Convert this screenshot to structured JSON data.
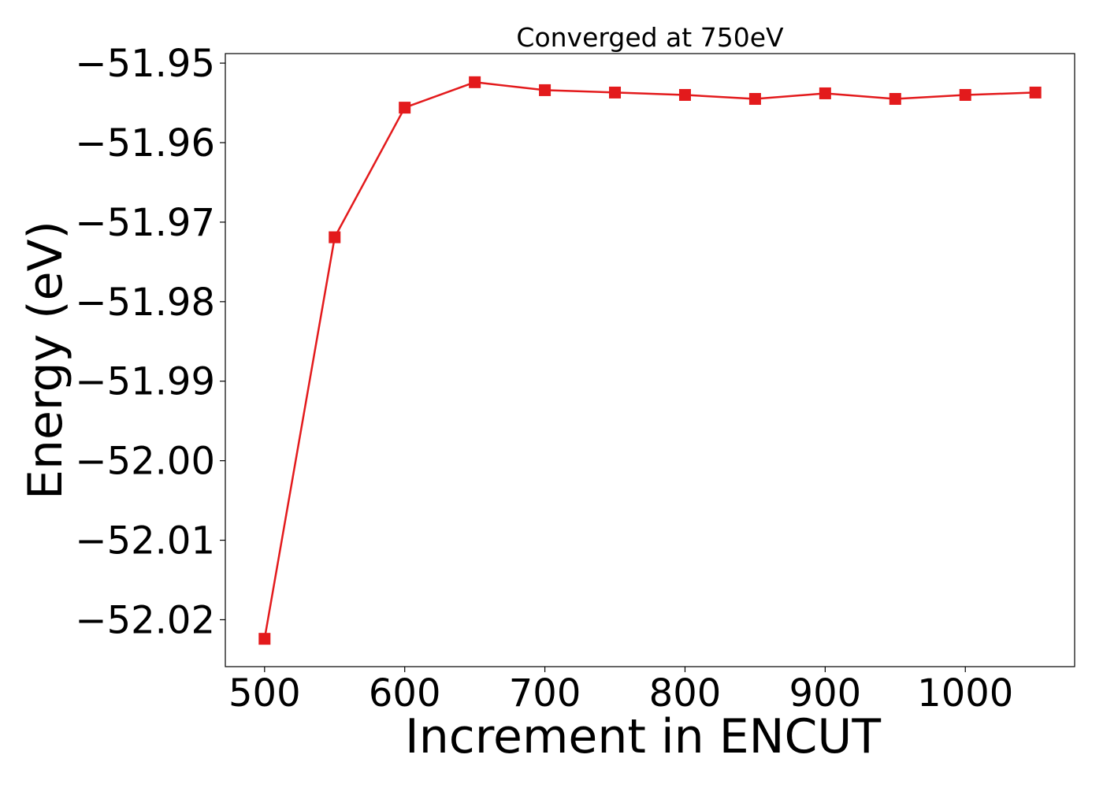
{
  "chart_data": {
    "type": "line",
    "title": "Converged at 750eV",
    "xlabel": "Increment in ENCUT",
    "ylabel": "Energy (eV)",
    "xlim": [
      472,
      1078
    ],
    "ylim": [
      -52.0259,
      -51.9488
    ],
    "x_ticks": [
      500,
      600,
      700,
      800,
      900,
      1000
    ],
    "x_tick_labels": [
      "500",
      "600",
      "700",
      "800",
      "900",
      "1000"
    ],
    "y_ticks": [
      -51.95,
      -51.96,
      -51.97,
      -51.98,
      -51.99,
      -52.0,
      -52.01,
      -52.02
    ],
    "y_tick_labels": [
      "−51.95",
      "−51.96",
      "−51.97",
      "−51.98",
      "−51.99",
      "−52.00",
      "−52.01",
      "−52.02"
    ],
    "grid": false,
    "color": "#e31a1c",
    "marker": "square",
    "series": [
      {
        "x": [
          500,
          550,
          600,
          650,
          700,
          750,
          800,
          850,
          900,
          950,
          1000,
          1050
        ],
        "values": [
          -52.0224,
          -51.9719,
          -51.9556,
          -51.9524,
          -51.9534,
          -51.9537,
          -51.954,
          -51.9545,
          -51.9538,
          -51.9545,
          -51.954,
          -51.9537
        ]
      }
    ]
  }
}
